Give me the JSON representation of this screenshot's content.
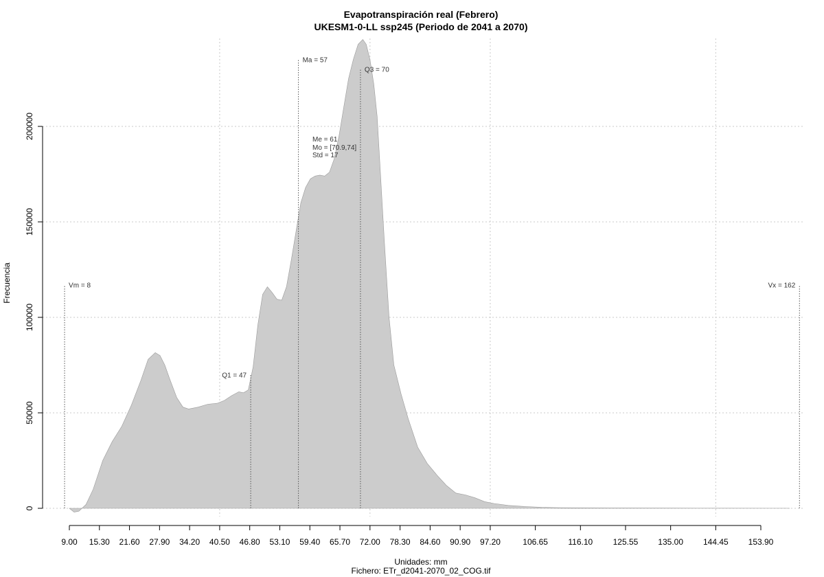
{
  "chart_data": {
    "type": "area",
    "title": "Evapotranspiración real (Febrero)",
    "subtitle": "UKESM1-0-LL ssp245 (Periodo de 2041 a 2070)",
    "xlabel": "Unidades: mm",
    "ylabel": "Frecuencia",
    "caption": "Fichero: ETr_d2041-2070_02_COG.tif",
    "xlim": [
      8,
      162
    ],
    "ylim": [
      0,
      245000
    ],
    "grid": true,
    "x_ticks": [
      "9.00",
      "15.30",
      "21.60",
      "27.90",
      "34.20",
      "40.50",
      "46.80",
      "53.10",
      "59.40",
      "65.70",
      "72.00",
      "78.30",
      "84.60",
      "90.90",
      "97.20",
      "106.65",
      "116.10",
      "125.55",
      "135.00",
      "144.45",
      "153.90"
    ],
    "y_ticks": [
      "0",
      "50000",
      "100000",
      "150000",
      "200000"
    ],
    "fill_color": "#cccccc",
    "density": {
      "x": [
        9.0,
        10.0,
        11.0,
        12.5,
        14.0,
        16.0,
        18.0,
        20.0,
        22.0,
        24.0,
        25.5,
        27.0,
        28.0,
        29.0,
        30.0,
        31.5,
        32.8,
        34.0,
        36.0,
        38.0,
        40.0,
        41.5,
        43.0,
        44.5,
        45.5,
        46.5,
        47.5,
        48.5,
        49.5,
        50.5,
        51.5,
        52.5,
        53.5,
        54.5,
        55.5,
        56.5,
        57.5,
        58.5,
        59.5,
        60.5,
        61.5,
        62.5,
        63.5,
        64.5,
        65.5,
        66.5,
        67.5,
        68.5,
        69.5,
        70.5,
        71.2,
        72.0,
        72.8,
        73.5,
        74.2,
        75.0,
        76.0,
        77.0,
        78.5,
        80.0,
        82.0,
        84.0,
        86.0,
        88.0,
        90.0,
        92.0,
        94.0,
        96.0,
        98.0,
        101.0,
        104.0,
        108.0,
        112.0,
        117.0,
        125.0,
        135.0,
        145.0,
        155.0,
        160.0
      ],
      "y": [
        0,
        -2000,
        -1500,
        2000,
        10000,
        25000,
        35000,
        43000,
        54000,
        67000,
        78000,
        81500,
        80000,
        75000,
        68000,
        58000,
        53000,
        52000,
        53000,
        54500,
        55000,
        56500,
        59000,
        61000,
        60500,
        62000,
        74000,
        96000,
        112000,
        116000,
        113000,
        109500,
        109000,
        116000,
        130000,
        145000,
        160000,
        168000,
        172500,
        174000,
        174500,
        174000,
        176000,
        183000,
        195000,
        210000,
        225000,
        235000,
        243000,
        245500,
        243000,
        235000,
        222000,
        205000,
        175000,
        140000,
        100000,
        75000,
        60000,
        47000,
        32000,
        23500,
        17500,
        12000,
        8000,
        7000,
        5500,
        3500,
        2500,
        1500,
        1000,
        500,
        300,
        200,
        150,
        100,
        80,
        50,
        0
      ]
    },
    "markers": [
      {
        "label": "Vm = 8",
        "x": 8,
        "y_top": 117000,
        "label_side": "right"
      },
      {
        "label": "Q1 = 47",
        "x": 47,
        "y_top": 70000,
        "label_side": "left"
      },
      {
        "label": "Ma = 57",
        "x": 57,
        "y_top": 235000,
        "label_side": "right"
      },
      {
        "label": "Q3 = 70",
        "x": 70,
        "y_top": 230000,
        "label_side": "right"
      },
      {
        "label": "Vx = 162",
        "x": 162,
        "y_top": 117000,
        "label_side": "left"
      }
    ],
    "stats": [
      "Me = 61",
      "Mo = [70.9,74]",
      "Std = 17"
    ]
  }
}
